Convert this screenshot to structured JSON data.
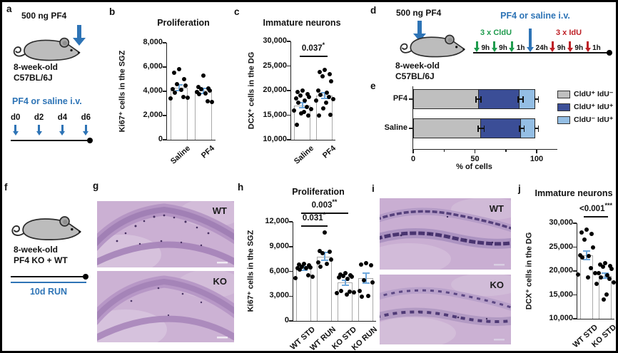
{
  "colors": {
    "blue": "#2E74B6",
    "green": "#1E9B4D",
    "red": "#BE2026",
    "errorbar": "#6FA8DC",
    "bar_outline": "#A9A9A9",
    "cldu_only": "#BFBFBF",
    "cldu_idu": "#3B4E97",
    "idu_only": "#94BEE4"
  },
  "panel_a": {
    "label": "a",
    "dose": "500 ng  PF4",
    "age": "8-week-old",
    "strain": "C57BL/6J",
    "treatment": "PF4 or saline i.v.",
    "timeline": [
      "d0",
      "d2",
      "d4",
      "d6"
    ]
  },
  "panel_b": {
    "label": "b"
  },
  "panel_c": {
    "label": "c"
  },
  "panel_d": {
    "label": "d",
    "dose": "500 ng  PF4",
    "age": "8-week-old",
    "strain": "C57BL/6J",
    "treatment": "PF4 or saline i.v.",
    "cldu_label": "3 x CldU",
    "idu_label": "3 x IdU",
    "timeline": [
      {
        "c": "green",
        "t": "9h"
      },
      {
        "c": "green",
        "t": "9h"
      },
      {
        "c": "green",
        "t": "1h"
      },
      {
        "c": "blue",
        "t": "24h"
      },
      {
        "c": "red",
        "t": "9h"
      },
      {
        "c": "red",
        "t": "9h"
      },
      {
        "c": "red",
        "t": "1h"
      }
    ]
  },
  "panel_e": {
    "label": "e"
  },
  "panel_f": {
    "label": "f",
    "age": "8-week-old",
    "genotype": "PF4 KO + WT",
    "run": "10d RUN"
  },
  "panel_g": {
    "label": "g",
    "img_labels": [
      "WT",
      "KO"
    ]
  },
  "panel_h": {
    "label": "h"
  },
  "panel_i": {
    "label": "i",
    "img_labels": [
      "WT",
      "KO"
    ]
  },
  "panel_j": {
    "label": "j"
  },
  "chart_data": [
    {
      "id": "b",
      "type": "bar",
      "title": "Proliferation",
      "ylabel": "Ki67⁺ cells in the SGZ",
      "ylim": [
        0,
        8000
      ],
      "yticks": [
        0,
        2000,
        4000,
        6000,
        8000
      ],
      "categories": [
        "Saline",
        "PF4"
      ],
      "means": [
        4300,
        4050
      ],
      "sem": [
        250,
        200
      ],
      "points": [
        [
          5850,
          5550,
          5000,
          4600,
          4450,
          4200,
          4100,
          3900,
          3550,
          3500,
          3400
        ],
        [
          5300,
          4350,
          4250,
          4150,
          4050,
          3950,
          3800,
          3750,
          3200,
          3100
        ]
      ],
      "sig": []
    },
    {
      "id": "c",
      "type": "bar",
      "title": "Immature neurons",
      "ylabel": "DCX⁺ cells in the DG",
      "ylim": [
        10000,
        30000
      ],
      "yticks": [
        10000,
        15000,
        20000,
        25000,
        30000
      ],
      "categories": [
        "Saline",
        "PF4"
      ],
      "means": [
        17000,
        19000
      ],
      "sem": [
        500,
        600
      ],
      "points": [
        [
          20000,
          19700,
          19300,
          19000,
          18700,
          18400,
          18000,
          17600,
          16600,
          16300,
          15900,
          15600,
          15300,
          14900,
          13000
        ],
        [
          24200,
          23800,
          23400,
          22900,
          21900,
          20000,
          19600,
          19100,
          18700,
          18300,
          17900,
          17500,
          16400,
          15100,
          14900
        ]
      ],
      "sig": [
        {
          "from": 0,
          "to": 1,
          "label": "0.037",
          "stars": "*",
          "dy": 20
        }
      ]
    },
    {
      "id": "e",
      "type": "stacked_bar_h",
      "xlabel": "% of cells",
      "categories": [
        "PF4",
        "Saline"
      ],
      "series": [
        {
          "name": "CldU⁺ IdU⁻",
          "color": "cldu_only",
          "values": [
            53,
            55
          ]
        },
        {
          "name": "CldU⁺ IdU⁺",
          "color": "cldu_idu",
          "values": [
            34,
            33
          ]
        },
        {
          "name": "CldU⁻ IdU⁺",
          "color": "idu_only",
          "values": [
            13,
            12
          ]
        }
      ],
      "err": [
        [
          2,
          2,
          1.5
        ],
        [
          2.5,
          2,
          1.5
        ]
      ],
      "xticks": [
        0,
        50,
        100
      ],
      "xminor": [
        25,
        75
      ],
      "xlim": [
        0,
        117
      ]
    },
    {
      "id": "h",
      "type": "bar",
      "title": "Proliferation",
      "ylabel": "Ki67⁺ cells in the SGZ",
      "ylim": [
        0,
        12000
      ],
      "yticks": [
        0,
        3000,
        6000,
        9000,
        12000
      ],
      "categories": [
        "WT STD",
        "WT RUN",
        "KO STD",
        "KO RUN"
      ],
      "means": [
        6350,
        7800,
        4650,
        5200
      ],
      "sem": [
        200,
        450,
        300,
        600
      ],
      "points": [
        [
          6900,
          6800,
          6700,
          6600,
          6500,
          6400,
          6350,
          6200,
          5500,
          5350,
          5200
        ],
        [
          10700,
          8450,
          8350,
          8200,
          7400,
          7050,
          6900,
          6600
        ],
        [
          5800,
          5650,
          5500,
          5450,
          5350,
          5250,
          5100,
          3650,
          3550,
          3450,
          3350,
          3200
        ],
        [
          6950,
          6850,
          6700,
          4950,
          4700,
          3650,
          3050,
          2950
        ]
      ],
      "sig": [
        {
          "from": 0,
          "to": 1,
          "label": "0.031",
          "stars": "*",
          "dy": 5
        },
        {
          "from": 0,
          "to": 2,
          "label": "0.003",
          "stars": "**",
          "dy": -13
        }
      ]
    },
    {
      "id": "j",
      "type": "bar",
      "title": "Immature neurons",
      "ylabel": "DCX⁺ cells in the DG",
      "ylim": [
        10000,
        30000
      ],
      "yticks": [
        10000,
        15000,
        20000,
        25000,
        30000
      ],
      "categories": [
        "WT STD",
        "KO STD"
      ],
      "means": [
        23300,
        19000
      ],
      "sem": [
        950,
        550
      ],
      "points": [
        [
          28600,
          28100,
          27800,
          26500,
          25000,
          23300,
          23100,
          22900,
          20600,
          19600,
          19300,
          18600
        ],
        [
          21600,
          21400,
          21100,
          20900,
          20500,
          19600,
          19100,
          18600,
          18300,
          17600,
          17300,
          15100,
          14100
        ]
      ],
      "sig": [
        {
          "from": 0,
          "to": 1,
          "label": "<0.001",
          "stars": "***",
          "dy": -10
        }
      ]
    }
  ]
}
